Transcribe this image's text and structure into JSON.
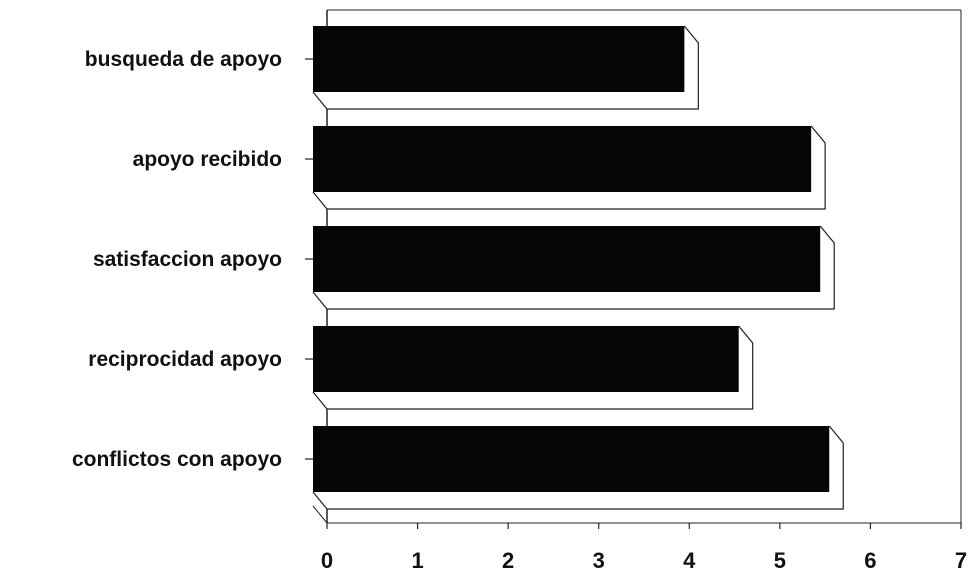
{
  "chart_data": {
    "type": "bar",
    "orientation": "horizontal",
    "style": "3d",
    "categories": [
      "busqueda de apoyo",
      "apoyo recibido",
      "satisfaccion apoyo",
      "reciprocidad apoyo",
      "conflictos con apoyo"
    ],
    "values": [
      4.1,
      5.5,
      5.6,
      4.7,
      5.7
    ],
    "xlim": [
      0,
      7
    ],
    "xticks": [
      "0",
      "1",
      "2",
      "3",
      "4",
      "5",
      "6",
      "7"
    ],
    "grid": false,
    "legend": "none",
    "title": "",
    "xlabel": "",
    "ylabel": "",
    "colors": {
      "bar": "#050505",
      "axis": "#222222",
      "text": "#111111"
    }
  }
}
